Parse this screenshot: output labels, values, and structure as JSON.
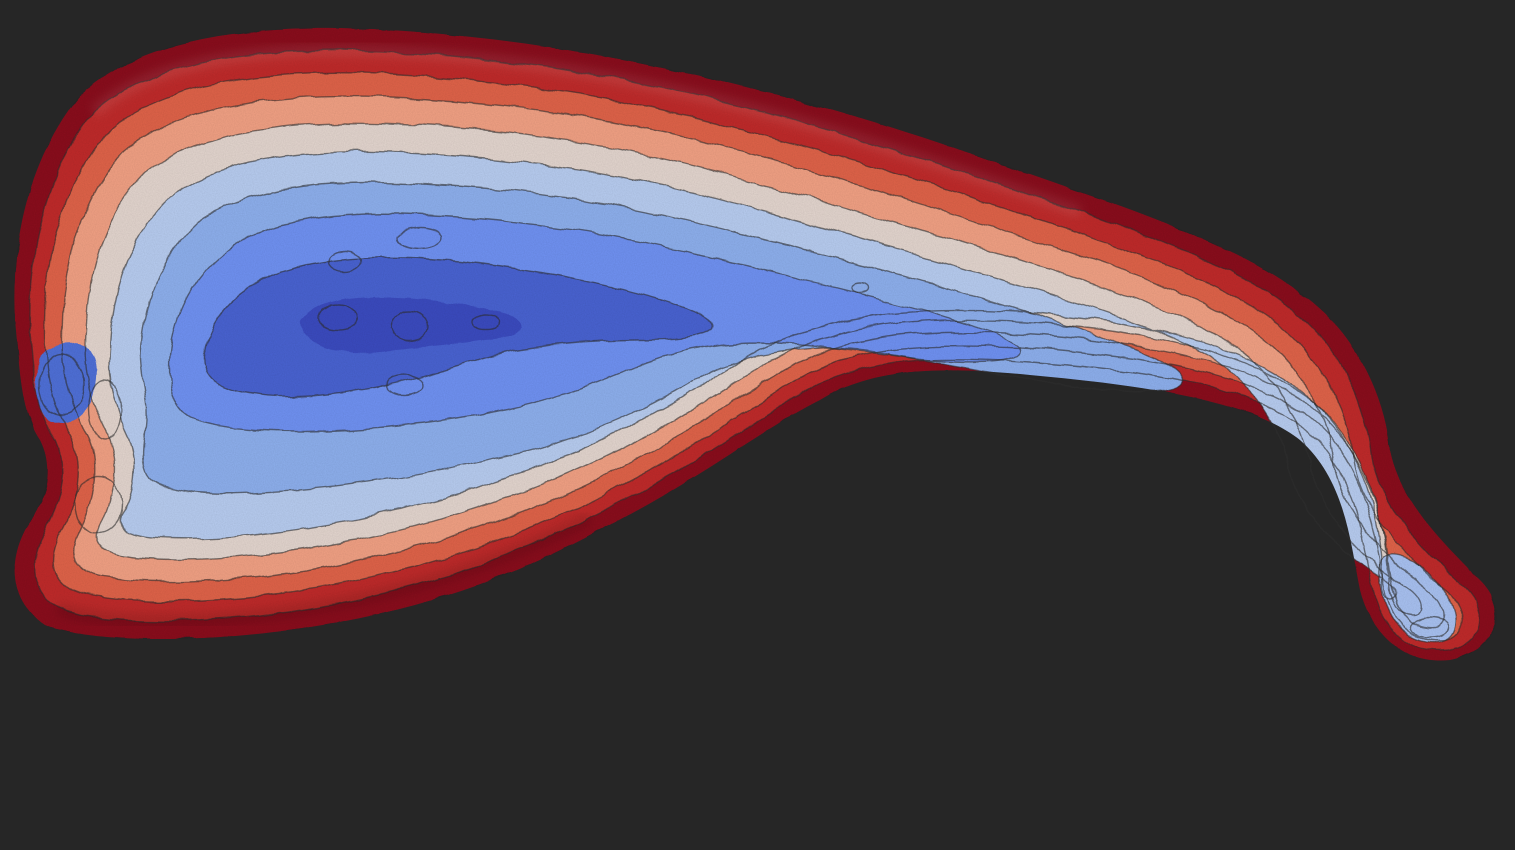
{
  "viewer": {
    "background_color": "#262626",
    "colormap": "coolwarm",
    "colormap_stops": [
      "#3b4cc0",
      "#6f92f3",
      "#aac7fd",
      "#dddcdc",
      "#f7b89c",
      "#e7745b",
      "#b40426",
      "#8a0a1c"
    ],
    "contour_line_color": "#2e2e2e",
    "surface": "lake-bathymetry-shaded-relief"
  }
}
